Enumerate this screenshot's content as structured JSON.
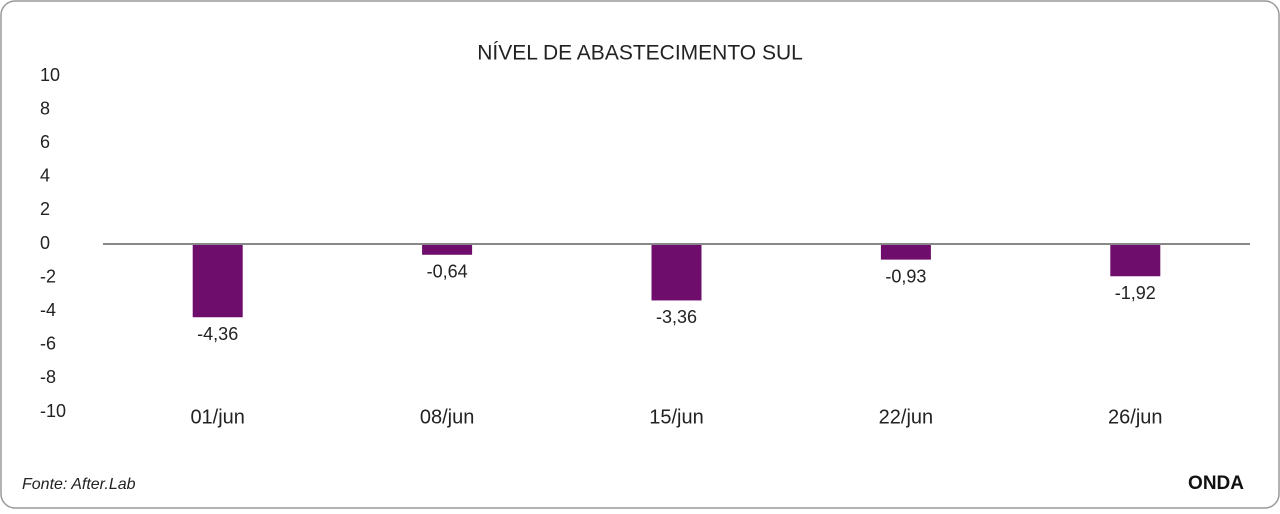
{
  "chart_data": {
    "type": "bar",
    "title": "NÍVEL DE ABASTECIMENTO SUL",
    "categories": [
      "01/jun",
      "08/jun",
      "15/jun",
      "22/jun",
      "26/jun"
    ],
    "values": [
      -4.36,
      -0.64,
      -3.36,
      -0.93,
      -1.92
    ],
    "value_labels": [
      "-4,36",
      "-0,64",
      "-3,36",
      "-0,93",
      "-1,92"
    ],
    "color": "#6e0d6b",
    "ylim": [
      -10,
      10
    ],
    "yticks": [
      -10,
      -8,
      -6,
      -4,
      -2,
      0,
      2,
      4,
      6,
      8,
      10
    ],
    "grid": false,
    "source": "Fonte: After.Lab",
    "brand": "ONDA"
  }
}
